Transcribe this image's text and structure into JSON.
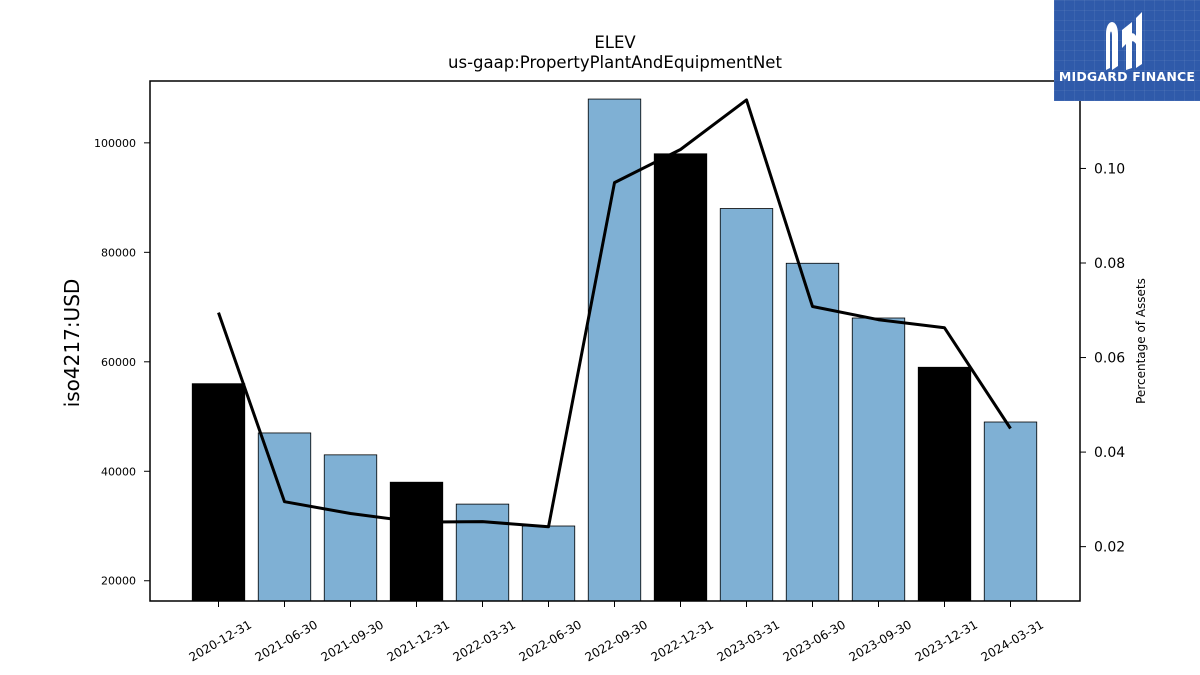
{
  "chart_data": {
    "type": "bar",
    "title": "ELEV",
    "subtitle": "us-gaap:PropertyPlantAndEquipmentNet",
    "ylabel": "iso4217:USD",
    "y2label": "Percentage of Assets",
    "categories": [
      "2020-12-31",
      "2021-06-30",
      "2021-09-30",
      "2021-12-31",
      "2022-03-31",
      "2022-06-30",
      "2022-09-30",
      "2022-12-31",
      "2023-03-31",
      "2023-06-30",
      "2023-09-30",
      "2023-12-31",
      "2024-03-31"
    ],
    "series": [
      {
        "values": [
          56000,
          47000,
          43000,
          38000,
          34000,
          30000,
          108000,
          98000,
          88000,
          78000,
          68000,
          59000,
          49000
        ],
        "bar_colors": [
          "#000000",
          "#7fb0d4",
          "#7fb0d4",
          "#000000",
          "#7fb0d4",
          "#7fb0d4",
          "#7fb0d4",
          "#000000",
          "#7fb0d4",
          "#7fb0d4",
          "#7fb0d4",
          "#000000",
          "#7fb0d4"
        ]
      },
      {
        "axis": "right",
        "values": [
          0.0695,
          0.0295,
          0.027,
          0.0252,
          0.0253,
          0.0242,
          0.097,
          0.104,
          0.1145,
          0.0708,
          0.068,
          0.0663,
          0.045
        ],
        "color": "#000000"
      }
    ],
    "yticks": [
      20000,
      40000,
      60000,
      80000,
      100000
    ],
    "ylim": [
      16300,
      111300
    ],
    "y2ticks": [
      0.02,
      0.04,
      0.06,
      0.08,
      0.1
    ],
    "y2ticklabels": [
      "0.02",
      "0.04",
      "0.06",
      "0.08",
      "0.10"
    ],
    "y2lim": [
      0.0085,
      0.1185
    ],
    "grid": false
  },
  "logo": {
    "text": "MIDGARD FINANCE",
    "background": "#2f5aaa"
  }
}
